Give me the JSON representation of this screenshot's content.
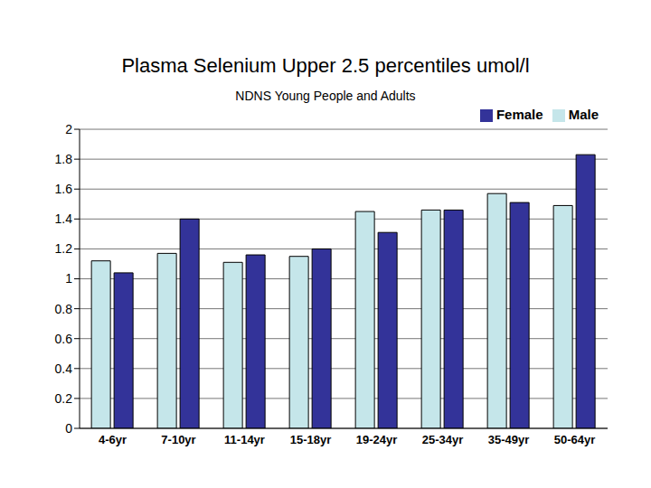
{
  "chart_data": {
    "type": "bar",
    "title": "Plasma Selenium Upper 2.5 percentiles umol/l",
    "subtitle": "NDNS Young People and Adults",
    "categories": [
      "4-6yr",
      "7-10yr",
      "11-14yr",
      "15-18yr",
      "19-24yr",
      "25-34yr",
      "35-49yr",
      "50-64yr"
    ],
    "series": [
      {
        "name": "Male",
        "color": "#c5e6ea",
        "values": [
          1.12,
          1.17,
          1.11,
          1.15,
          1.45,
          1.46,
          1.57,
          1.49
        ]
      },
      {
        "name": "Female",
        "color": "#333399",
        "values": [
          1.04,
          1.4,
          1.16,
          1.2,
          1.31,
          1.46,
          1.51,
          1.83
        ]
      }
    ],
    "ylim": [
      0,
      2
    ],
    "yticks": [
      0,
      0.2,
      0.4,
      0.6,
      0.8,
      1,
      1.2,
      1.4,
      1.6,
      1.8,
      2
    ],
    "grid": true,
    "legend": "upper right"
  }
}
